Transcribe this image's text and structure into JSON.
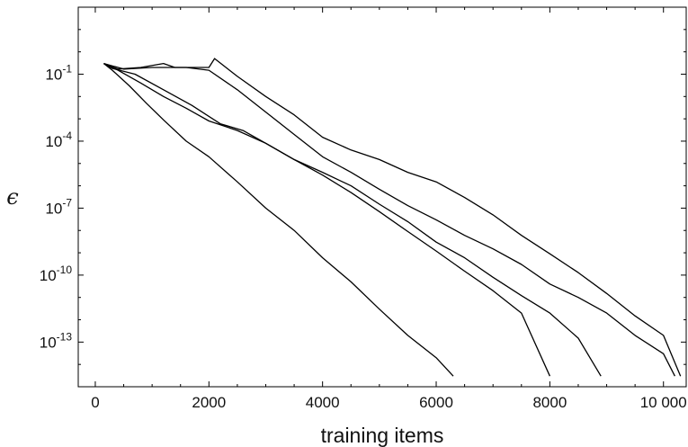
{
  "chart_data": {
    "type": "line",
    "title": "",
    "xlabel": "training items",
    "ylabel": "ϵ",
    "x_scale": "linear",
    "y_scale": "log",
    "xlim": [
      -300,
      10400
    ],
    "ylim": [
      1e-15,
      100
    ],
    "x_ticks": [
      0,
      2000,
      4000,
      6000,
      8000,
      10000
    ],
    "x_tick_labels": [
      "0",
      "2000",
      "4000",
      "6000",
      "8000",
      "10 000"
    ],
    "y_tick_exponents": [
      -1,
      -4,
      -7,
      -10,
      -13
    ],
    "y_tick_labels": [
      "10^-1",
      "10^-4",
      "10^-7",
      "10^-10",
      "10^-13"
    ],
    "grid": false,
    "legend": "none",
    "line_color": "#000000",
    "series": [
      {
        "x": [
          150,
          300,
          600,
          900,
          1200,
          1600,
          2000,
          2500,
          3000,
          3500,
          4000,
          4500,
          5000,
          5500,
          6000,
          6300
        ],
        "y": [
          0.3,
          0.15,
          0.03,
          0.005,
          0.0009,
          0.0001,
          2e-05,
          1.5e-06,
          1e-07,
          1e-08,
          6e-10,
          5e-11,
          3e-12,
          2e-13,
          2e-14,
          3e-15
        ]
      },
      {
        "x": [
          150,
          400,
          800,
          1200,
          1600,
          2000,
          2500,
          3000,
          3500,
          4000,
          4500,
          5000,
          5500,
          6000,
          6500,
          7000,
          7500,
          8000
        ],
        "y": [
          0.3,
          0.15,
          0.04,
          0.01,
          0.003,
          0.0008,
          0.0003,
          8e-05,
          1.5e-05,
          3e-06,
          5e-07,
          7e-08,
          9e-09,
          1.2e-09,
          1.5e-10,
          2e-11,
          2e-12,
          3e-15
        ]
      },
      {
        "x": [
          150,
          300,
          700,
          1200,
          1700,
          2200,
          2600,
          3000,
          3500,
          4000,
          4500,
          5000,
          5500,
          6000,
          6500,
          7000,
          7500,
          8000,
          8500,
          8900
        ],
        "y": [
          0.3,
          0.18,
          0.1,
          0.02,
          0.004,
          0.0006,
          0.0003,
          8e-05,
          1.5e-05,
          4e-06,
          1e-06,
          1.5e-07,
          2.5e-08,
          3e-09,
          6e-10,
          8e-11,
          1.2e-11,
          2e-12,
          1.5e-13,
          3e-15
        ]
      },
      {
        "x": [
          150,
          400,
          800,
          1200,
          1400,
          1600,
          2000,
          2500,
          3000,
          3500,
          4000,
          4500,
          5000,
          5500,
          6000,
          6500,
          7000,
          7500,
          8000,
          8500,
          9000,
          9500,
          10000,
          10200
        ],
        "y": [
          0.3,
          0.17,
          0.2,
          0.3,
          0.2,
          0.2,
          0.15,
          0.02,
          0.002,
          0.0002,
          2e-05,
          4e-06,
          7e-07,
          1.3e-07,
          3e-08,
          6e-09,
          1.5e-09,
          3e-10,
          4e-11,
          1e-11,
          2e-12,
          2e-13,
          3e-14,
          3e-15
        ]
      },
      {
        "x": [
          150,
          500,
          1000,
          1500,
          1800,
          2000,
          2100,
          2500,
          3000,
          3500,
          4000,
          4500,
          5000,
          5500,
          6000,
          6500,
          7000,
          7500,
          8000,
          8500,
          9000,
          9500,
          10000,
          10300
        ],
        "y": [
          0.3,
          0.17,
          0.2,
          0.2,
          0.2,
          0.2,
          0.5,
          0.08,
          0.01,
          0.0015,
          0.00015,
          4e-05,
          1.5e-05,
          4e-06,
          1.5e-06,
          3e-07,
          5e-08,
          6e-09,
          9e-10,
          1.3e-10,
          1.5e-11,
          1.5e-12,
          2e-13,
          3e-15
        ]
      }
    ]
  }
}
